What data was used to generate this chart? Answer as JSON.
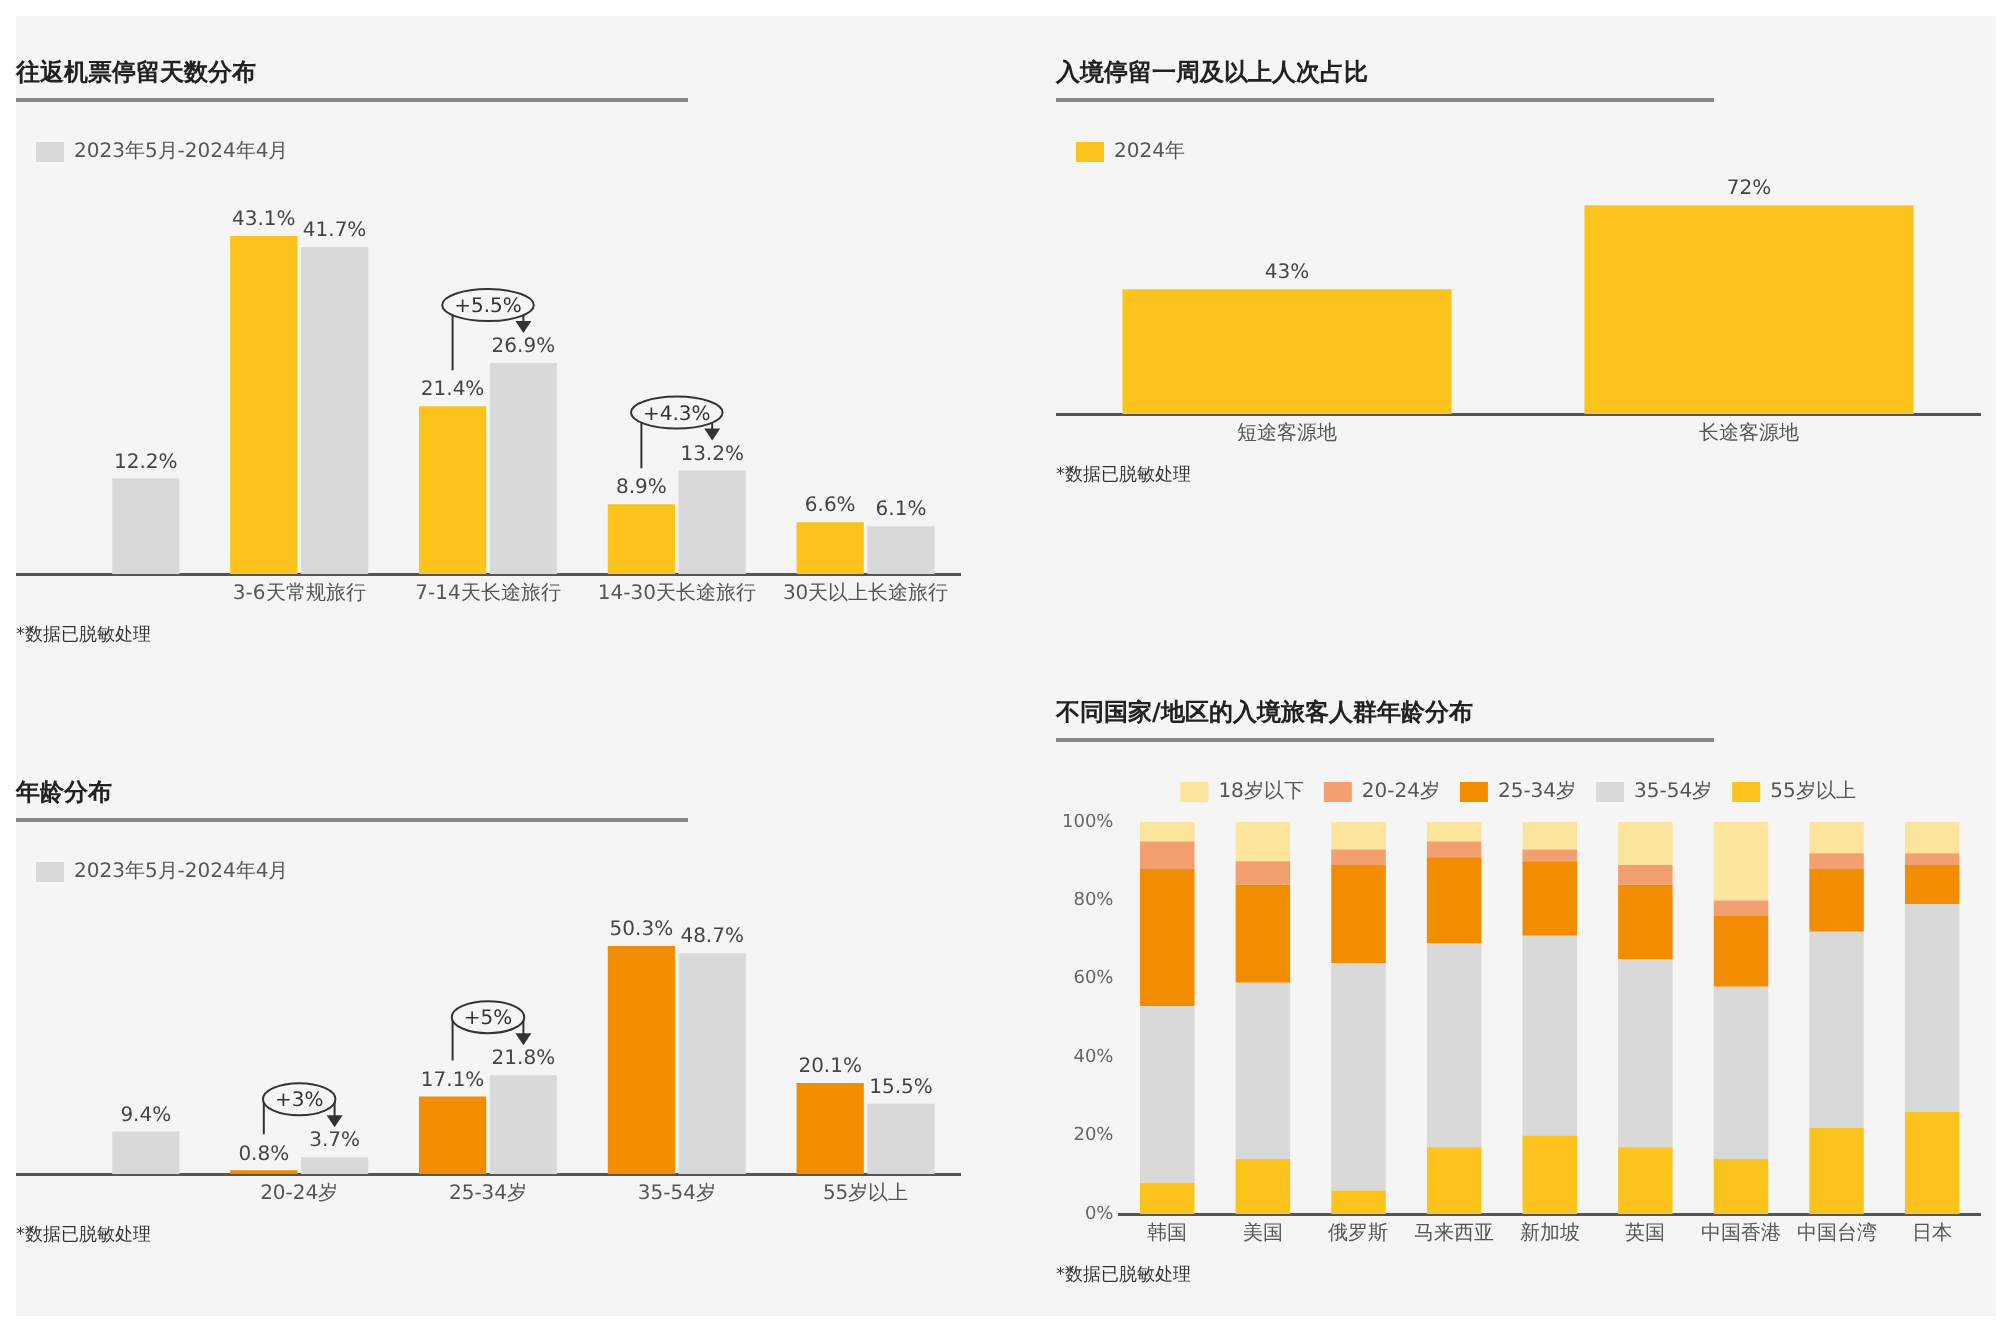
{
  "chart_data": [
    {
      "type": "bar",
      "title": "往返机票停留天数分布",
      "categories": [
        null,
        "3-6天常规旅行",
        "7-14天长途旅行",
        "14-30天长途旅行",
        "30天以上长途旅行"
      ],
      "series": [
        {
          "color": "#fbc31c",
          "values": [
            null,
            43.1,
            21.4,
            8.9,
            6.6
          ],
          "value_labels": [
            null,
            "43.1%",
            "21.4%",
            "8.9%",
            "6.6%"
          ]
        },
        {
          "name": "2023年5月-2024年4月",
          "color": "#d9d9d9",
          "values": [
            12.2,
            41.7,
            26.9,
            13.2,
            6.1
          ],
          "value_labels": [
            "12.2%",
            "41.7%",
            "26.9%",
            "13.2%",
            "6.1%"
          ]
        }
      ],
      "legend": "top left",
      "grid": false,
      "annotations": [
        {
          "text": "+5.5%",
          "x": "7-14天长途旅行",
          "y": 26.9
        },
        {
          "text": "+4.3%",
          "x": "14-30天长途旅行",
          "y": 13.2
        },
        "*数据已脱敏处理"
      ]
    },
    {
      "type": "bar",
      "title": "年龄分布",
      "categories": [
        null,
        "20-24岁",
        "25-34岁",
        "35-54岁",
        "55岁以上"
      ],
      "series": [
        {
          "color": "#f28c00",
          "values": [
            null,
            0.8,
            17.1,
            50.3,
            20.1
          ],
          "value_labels": [
            null,
            "0.8%",
            "17.1%",
            "50.3%",
            "20.1%"
          ]
        },
        {
          "name": "2023年5月-2024年4月",
          "color": "#d9d9d9",
          "values": [
            9.4,
            3.7,
            21.8,
            48.7,
            15.5
          ],
          "value_labels": [
            "9.4%",
            "3.7%",
            "21.8%",
            "48.7%",
            "15.5%"
          ]
        }
      ],
      "legend": "top left",
      "grid": false,
      "annotations": [
        {
          "text": "+3%",
          "x": "20-24岁",
          "y": 3.7
        },
        {
          "text": "+5%",
          "x": "25-34岁",
          "y": 21.8
        },
        "*数据已脱敏处理"
      ]
    },
    {
      "type": "bar",
      "title": "入境停留一周及以上人次占比",
      "categories": [
        "短途客源地",
        "长途客源地"
      ],
      "series": [
        {
          "name": "2024年",
          "color": "#fbc31c",
          "values": [
            43,
            72
          ],
          "value_labels": [
            "43%",
            "72%"
          ]
        }
      ],
      "legend": "top left",
      "grid": false,
      "annotations": [
        "*数据已脱敏处理"
      ]
    },
    {
      "type": "bar",
      "title": "不同国家/地区的入境旅客人群年龄分布",
      "categories": [
        "韩国",
        "美国",
        "俄罗斯",
        "马来西亚",
        "新加坡",
        "英国",
        "中国香港",
        "中国台湾",
        "日本"
      ],
      "stacked": true,
      "series": [
        {
          "name": "55岁以上",
          "color": "#fbc31c",
          "values": [
            8,
            14,
            6,
            17,
            20,
            17,
            14,
            22,
            26
          ]
        },
        {
          "name": "35-54岁",
          "color": "#d9d9d9",
          "values": [
            45,
            45,
            58,
            52,
            51,
            48,
            44,
            50,
            53
          ]
        },
        {
          "name": "25-34岁",
          "color": "#f28c00",
          "values": [
            35,
            25,
            25,
            22,
            19,
            19,
            18,
            16,
            10
          ]
        },
        {
          "name": "20-24岁",
          "color": "#f3a070",
          "values": [
            7,
            6,
            4,
            4,
            3,
            5,
            4,
            4,
            3
          ]
        },
        {
          "name": "18岁以下",
          "color": "#fde49c",
          "values": [
            5,
            10,
            7,
            5,
            7,
            11,
            20,
            8,
            8
          ]
        }
      ],
      "ylim": [
        0,
        100
      ],
      "yticks": [
        {
          "value": 0,
          "label": "0%"
        },
        {
          "value": 20,
          "label": "20%"
        },
        {
          "value": 40,
          "label": "40%"
        },
        {
          "value": 60,
          "label": "60%"
        },
        {
          "value": 80,
          "label": "80%"
        },
        {
          "value": 100,
          "label": "100%"
        }
      ],
      "legend": "top",
      "grid": false,
      "annotations": [
        "*数据已脱敏处理"
      ]
    }
  ]
}
